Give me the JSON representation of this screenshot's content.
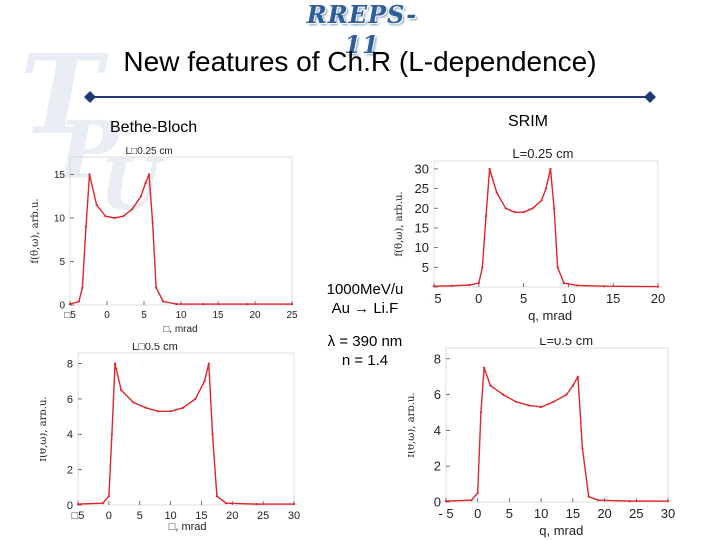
{
  "header": {
    "logo_text": "RREPS-11"
  },
  "title": "New features of Ch.R (L-dependence)",
  "labels": {
    "left": "Bethe-Bloch",
    "right": "SRIM"
  },
  "infobox": {
    "line1": "1000MeV/u",
    "line2": "Au → Li.F",
    "line3": "λ = 390 nm",
    "line4": "n = 1.4"
  },
  "colors": {
    "curve": "#e0242a",
    "accent": "#1e3a74",
    "watermark": "#e9eef4"
  },
  "chart_data": [
    {
      "type": "line",
      "title": "L□0.25 cm",
      "xlabel": "□, mrad",
      "ylabel": "f(θ,ω), arb.u.",
      "xlim": [
        0,
        25
      ],
      "ylim": [
        0,
        17
      ],
      "xticks": [
        "□5",
        "0",
        "5",
        "10",
        "15",
        "20",
        "25"
      ],
      "yticks": [
        "0",
        "5",
        "10",
        "15"
      ],
      "series": [
        {
          "x": [
            0,
            1,
            1.4,
            1.8,
            2.2,
            3,
            4,
            5,
            6,
            7,
            8,
            8.5,
            8.9,
            9.3,
            9.7,
            10.5,
            12,
            15,
            20,
            25
          ],
          "y": [
            0.1,
            0.4,
            2.0,
            9.0,
            15.0,
            11.5,
            10.2,
            10.0,
            10.2,
            11.0,
            12.5,
            14.0,
            15.0,
            9.5,
            2.0,
            0.4,
            0.1,
            0.1,
            0.1,
            0.1
          ]
        }
      ]
    },
    {
      "type": "line",
      "title": "L=0.25 cm",
      "xlabel": "q, mrad",
      "ylabel": "f(θ,ω), arb.u.",
      "xlim": [
        -5,
        20
      ],
      "ylim": [
        0,
        32
      ],
      "xticks": [
        "- 5",
        "0",
        "5",
        "10",
        "15",
        "20"
      ],
      "yticks": [
        "0",
        "5",
        "10",
        "15",
        "20",
        "25",
        "30"
      ],
      "series": [
        {
          "x": [
            -5,
            -3,
            -1,
            0,
            0.4,
            0.8,
            1.2,
            2,
            3,
            4,
            5,
            6,
            7,
            7.5,
            8,
            8.4,
            8.8,
            9.5,
            11,
            14,
            20
          ],
          "y": [
            0.2,
            0.3,
            0.5,
            1.0,
            5.0,
            18.0,
            30.0,
            24.0,
            20.0,
            19.0,
            19.0,
            20.0,
            22.0,
            25.0,
            30.0,
            20.0,
            5.0,
            1.0,
            0.4,
            0.2,
            0.1
          ]
        }
      ]
    },
    {
      "type": "line",
      "title": "L□0.5 cm",
      "xlabel": "□, mrad",
      "ylabel": "f(θ,ω), arb.u.",
      "xlim": [
        -5,
        30
      ],
      "ylim": [
        0,
        8.6
      ],
      "xticks": [
        "□5",
        "0",
        "5",
        "10",
        "15",
        "20",
        "25",
        "30"
      ],
      "yticks": [
        "0",
        "2",
        "4",
        "6",
        "8"
      ],
      "series": [
        {
          "x": [
            -5,
            -1,
            0,
            0.5,
            1.0,
            2,
            4,
            6,
            8,
            10,
            12,
            14,
            15.5,
            16.2,
            16.8,
            17.5,
            19,
            24,
            30
          ],
          "y": [
            0.05,
            0.1,
            0.5,
            4.0,
            8.0,
            6.5,
            5.8,
            5.5,
            5.3,
            5.3,
            5.5,
            6.0,
            7.0,
            8.0,
            4.0,
            0.5,
            0.1,
            0.05,
            0.05
          ]
        }
      ]
    },
    {
      "type": "line",
      "title": "L=0.5 cm",
      "xlabel": "q, mrad",
      "ylabel": "f(θ,ω), arb.u.",
      "xlim": [
        -5,
        30
      ],
      "ylim": [
        0,
        8.6
      ],
      "xticks": [
        "- 5",
        "0",
        "5",
        "10",
        "15",
        "20",
        "25",
        "30"
      ],
      "yticks": [
        "0",
        "2",
        "4",
        "6",
        "8"
      ],
      "series": [
        {
          "x": [
            -5,
            -1,
            0,
            0.5,
            1.0,
            2,
            4,
            6,
            8,
            10,
            12,
            14,
            15,
            15.8,
            16.5,
            17.5,
            19,
            24,
            30
          ],
          "y": [
            0.05,
            0.1,
            0.5,
            5.0,
            7.5,
            6.5,
            6.0,
            5.6,
            5.4,
            5.3,
            5.6,
            6.0,
            6.5,
            7.0,
            3.0,
            0.3,
            0.1,
            0.05,
            0.05
          ]
        }
      ]
    }
  ]
}
